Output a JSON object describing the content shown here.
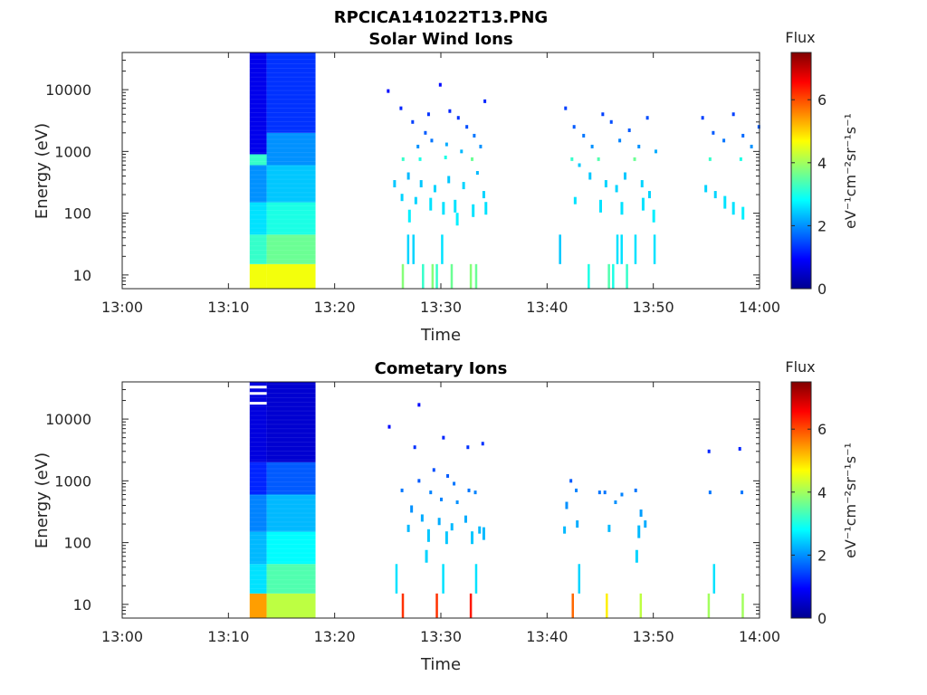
{
  "figure_title": "RPCICA141022T13.PNG",
  "colorbar": {
    "label": "Flux",
    "unit": "eV⁻¹cm⁻²sr⁻¹s⁻¹",
    "ticks": [
      "0",
      "2",
      "4",
      "6"
    ],
    "range": [
      0,
      7.5
    ],
    "colormap": "jet"
  },
  "chart_data": [
    {
      "type": "heatmap",
      "title": "Solar Wind Ions",
      "xlabel": "Time",
      "ylabel": "Energy (eV)",
      "x_ticks": [
        "13:00",
        "13:10",
        "13:20",
        "13:30",
        "13:40",
        "13:50",
        "14:00"
      ],
      "y_ticks": [
        "10",
        "100",
        "1000",
        "10000"
      ],
      "y_scale": "log",
      "ylim": [
        6,
        40000
      ],
      "xlim": [
        "13:00",
        "14:00"
      ],
      "block": [
        {
          "t0": 12.0,
          "t1": 13.6,
          "bands": [
            [
              6,
              15,
              4.6
            ],
            [
              15,
              45,
              3.2
            ],
            [
              45,
              150,
              2.6
            ],
            [
              150,
              600,
              2.0
            ],
            [
              600,
              900,
              3.2
            ],
            [
              900,
              40000,
              0.8
            ]
          ]
        },
        {
          "t0": 13.6,
          "t1": 18.2,
          "bands": [
            [
              6,
              15,
              4.6
            ],
            [
              15,
              45,
              3.6
            ],
            [
              45,
              150,
              3.0
            ],
            [
              150,
              600,
              2.4
            ],
            [
              600,
              2000,
              2.0
            ],
            [
              2000,
              40000,
              1.3
            ]
          ]
        }
      ],
      "points": [
        [
          26.4,
          8,
          3.8
        ],
        [
          26.9,
          30,
          2.5
        ],
        [
          27.4,
          30,
          2.5
        ],
        [
          28.3,
          8,
          3.2
        ],
        [
          29.2,
          8,
          3.8
        ],
        [
          29.6,
          8,
          3.2
        ],
        [
          30.1,
          30,
          2.6
        ],
        [
          31.0,
          8,
          3.6
        ],
        [
          32.8,
          8,
          3.8
        ],
        [
          33.3,
          8,
          3.6
        ],
        [
          43.9,
          8,
          3.0
        ],
        [
          41.2,
          40,
          2.4
        ],
        [
          45.8,
          8,
          3.4
        ],
        [
          46.2,
          8,
          3.0
        ],
        [
          46.6,
          30,
          2.6
        ],
        [
          47.0,
          30,
          2.6
        ],
        [
          47.5,
          8,
          3.2
        ],
        [
          48.3,
          30,
          2.6
        ],
        [
          50.1,
          30,
          2.6
        ],
        [
          26.4,
          750,
          3.2
        ],
        [
          28.0,
          750,
          3.0
        ],
        [
          30.4,
          800,
          3.0
        ],
        [
          32.9,
          750,
          3.6
        ],
        [
          42.3,
          750,
          3.2
        ],
        [
          44.8,
          750,
          3.4
        ],
        [
          48.2,
          750,
          3.6
        ],
        [
          55.3,
          750,
          3.2
        ],
        [
          58.2,
          750,
          3.0
        ],
        [
          25.0,
          9500,
          1.0
        ],
        [
          26.2,
          5000,
          1.2
        ],
        [
          27.3,
          3000,
          1.4
        ],
        [
          28.5,
          2000,
          1.6
        ],
        [
          29.1,
          1500,
          1.8
        ],
        [
          29.9,
          12000,
          1.0
        ],
        [
          30.8,
          4500,
          1.2
        ],
        [
          31.6,
          3500,
          1.3
        ],
        [
          32.4,
          2500,
          1.5
        ],
        [
          33.1,
          1800,
          1.8
        ],
        [
          33.7,
          1200,
          2.0
        ],
        [
          34.1,
          6500,
          1.2
        ],
        [
          27.8,
          1200,
          2.0
        ],
        [
          28.8,
          4000,
          1.3
        ],
        [
          30.5,
          1300,
          2.2
        ],
        [
          31.9,
          1000,
          2.3
        ],
        [
          26.9,
          400,
          2.3
        ],
        [
          28.1,
          300,
          2.4
        ],
        [
          29.4,
          250,
          2.5
        ],
        [
          30.7,
          350,
          2.4
        ],
        [
          32.1,
          280,
          2.5
        ],
        [
          33.4,
          450,
          2.3
        ],
        [
          34.0,
          200,
          2.5
        ],
        [
          25.6,
          300,
          2.4
        ],
        [
          26.3,
          180,
          2.5
        ],
        [
          27.6,
          160,
          2.5
        ],
        [
          29.0,
          140,
          2.6
        ],
        [
          30.2,
          120,
          2.6
        ],
        [
          31.3,
          130,
          2.6
        ],
        [
          33.0,
          110,
          2.6
        ],
        [
          34.2,
          120,
          2.6
        ],
        [
          27.0,
          90,
          2.7
        ],
        [
          31.5,
          80,
          2.7
        ],
        [
          41.7,
          5000,
          1.4
        ],
        [
          42.5,
          2500,
          1.6
        ],
        [
          43.4,
          1800,
          1.8
        ],
        [
          44.2,
          1200,
          2.0
        ],
        [
          45.2,
          4000,
          1.4
        ],
        [
          46.0,
          3000,
          1.5
        ],
        [
          46.8,
          1500,
          1.9
        ],
        [
          47.7,
          2200,
          1.6
        ],
        [
          48.6,
          1200,
          2.0
        ],
        [
          49.4,
          3500,
          1.5
        ],
        [
          50.2,
          1000,
          2.2
        ],
        [
          43.0,
          600,
          2.4
        ],
        [
          44.0,
          400,
          2.4
        ],
        [
          45.5,
          300,
          2.5
        ],
        [
          46.5,
          250,
          2.5
        ],
        [
          47.3,
          400,
          2.4
        ],
        [
          48.9,
          300,
          2.5
        ],
        [
          49.6,
          200,
          2.5
        ],
        [
          42.6,
          160,
          2.6
        ],
        [
          45.0,
          130,
          2.6
        ],
        [
          47.0,
          120,
          2.6
        ],
        [
          49.0,
          140,
          2.6
        ],
        [
          50.0,
          90,
          2.7
        ],
        [
          54.6,
          3500,
          1.4
        ],
        [
          55.6,
          2000,
          1.6
        ],
        [
          56.6,
          1500,
          1.8
        ],
        [
          57.5,
          4000,
          1.4
        ],
        [
          58.4,
          1800,
          1.7
        ],
        [
          59.2,
          1200,
          2.0
        ],
        [
          59.9,
          2500,
          1.6
        ],
        [
          54.9,
          250,
          2.5
        ],
        [
          55.8,
          200,
          2.5
        ],
        [
          56.7,
          150,
          2.6
        ],
        [
          57.5,
          120,
          2.6
        ],
        [
          58.4,
          100,
          2.7
        ]
      ]
    },
    {
      "type": "heatmap",
      "title": "Cometary Ions",
      "xlabel": "Time",
      "ylabel": "Energy (eV)",
      "x_ticks": [
        "13:00",
        "13:10",
        "13:20",
        "13:30",
        "13:40",
        "13:50",
        "14:00"
      ],
      "y_ticks": [
        "10",
        "100",
        "1000",
        "10000"
      ],
      "y_scale": "log",
      "ylim": [
        6,
        40000
      ],
      "xlim": [
        "13:00",
        "14:00"
      ],
      "block": [
        {
          "t0": 12.0,
          "t1": 13.6,
          "bands": [
            [
              6,
              15,
              5.4
            ],
            [
              15,
              45,
              2.6
            ],
            [
              45,
              150,
              2.3
            ],
            [
              150,
              600,
              1.9
            ],
            [
              600,
              2000,
              1.2
            ],
            [
              2000,
              40000,
              0.7
            ]
          ]
        },
        {
          "t0": 13.6,
          "t1": 18.2,
          "bands": [
            [
              6,
              15,
              4.2
            ],
            [
              15,
              45,
              3.4
            ],
            [
              45,
              150,
              2.8
            ],
            [
              150,
              600,
              2.3
            ],
            [
              600,
              2000,
              1.6
            ],
            [
              2000,
              40000,
              0.6
            ]
          ]
        }
      ],
      "white_lines": [
        [
          12.0,
          13.6,
          33000
        ],
        [
          12.0,
          13.6,
          26000
        ],
        [
          12.0,
          13.6,
          18000
        ]
      ],
      "points": [
        [
          26.4,
          8,
          6.2
        ],
        [
          29.6,
          8,
          6.2
        ],
        [
          32.8,
          8,
          6.4
        ],
        [
          42.4,
          8,
          5.8
        ],
        [
          45.6,
          8,
          4.8
        ],
        [
          48.8,
          8,
          4.2
        ],
        [
          55.2,
          8,
          4.0
        ],
        [
          58.4,
          8,
          4.0
        ],
        [
          25.8,
          30,
          2.6
        ],
        [
          28.6,
          60,
          2.5
        ],
        [
          30.2,
          30,
          2.6
        ],
        [
          33.3,
          30,
          2.6
        ],
        [
          43.0,
          30,
          2.5
        ],
        [
          48.4,
          60,
          2.5
        ],
        [
          55.7,
          30,
          2.6
        ],
        [
          25.1,
          7500,
          1.0
        ],
        [
          27.9,
          17000,
          1.0
        ],
        [
          30.2,
          5000,
          1.2
        ],
        [
          32.5,
          3500,
          1.3
        ],
        [
          33.9,
          4000,
          1.3
        ],
        [
          27.5,
          3500,
          1.3
        ],
        [
          29.3,
          1500,
          1.5
        ],
        [
          30.6,
          1200,
          1.6
        ],
        [
          31.2,
          900,
          1.8
        ],
        [
          26.3,
          700,
          1.8
        ],
        [
          27.9,
          1000,
          1.6
        ],
        [
          29.0,
          650,
          1.9
        ],
        [
          30.0,
          500,
          1.9
        ],
        [
          31.5,
          450,
          2.0
        ],
        [
          32.6,
          700,
          1.8
        ],
        [
          33.2,
          650,
          1.9
        ],
        [
          27.2,
          350,
          2.0
        ],
        [
          28.2,
          250,
          2.2
        ],
        [
          29.8,
          220,
          2.2
        ],
        [
          31.0,
          180,
          2.3
        ],
        [
          32.3,
          240,
          2.2
        ],
        [
          33.6,
          160,
          2.3
        ],
        [
          26.9,
          170,
          2.3
        ],
        [
          28.8,
          130,
          2.4
        ],
        [
          30.5,
          120,
          2.4
        ],
        [
          32.9,
          120,
          2.4
        ],
        [
          34.0,
          140,
          2.3
        ],
        [
          42.2,
          1000,
          1.6
        ],
        [
          42.7,
          700,
          1.9
        ],
        [
          41.8,
          400,
          2.0
        ],
        [
          44.9,
          650,
          1.8
        ],
        [
          45.4,
          650,
          1.8
        ],
        [
          47.0,
          600,
          1.9
        ],
        [
          48.3,
          700,
          1.8
        ],
        [
          48.8,
          300,
          2.1
        ],
        [
          46.4,
          450,
          2.0
        ],
        [
          41.6,
          160,
          2.3
        ],
        [
          42.8,
          200,
          2.2
        ],
        [
          45.8,
          170,
          2.3
        ],
        [
          48.6,
          150,
          2.3
        ],
        [
          49.2,
          200,
          2.2
        ],
        [
          55.2,
          3000,
          1.2
        ],
        [
          58.1,
          3300,
          1.2
        ],
        [
          55.3,
          650,
          1.8
        ],
        [
          58.3,
          650,
          1.8
        ]
      ]
    }
  ]
}
